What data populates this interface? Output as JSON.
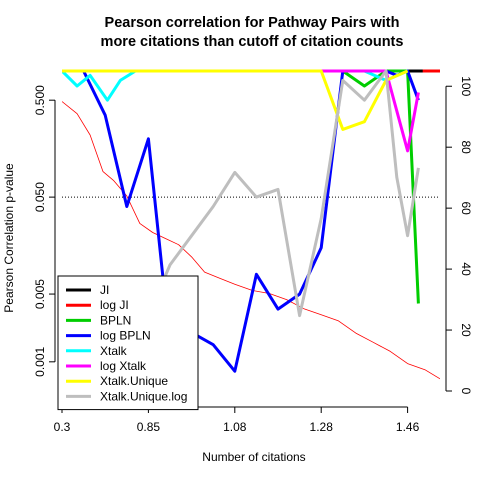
{
  "chart_data": {
    "type": "line",
    "title_lines": [
      "Pearson correlation for Pathway Pairs with",
      "more citations than cutoff of citation counts"
    ],
    "xlabel": "Number of citations",
    "ylabel": "Pearson Correlation p-value",
    "x_tick_labels": [
      "0.3",
      "0.85",
      "1.08",
      "1.28",
      "1.46"
    ],
    "x_tick_values": [
      1,
      5,
      9,
      13,
      17
    ],
    "xlim": [
      1,
      18.5
    ],
    "y_left": {
      "scale": "log10",
      "range": [
        0.0005,
        1.0
      ],
      "ticks": [
        0.001,
        0.005,
        0.05,
        0.5
      ],
      "tick_labels": [
        "0.001",
        "0.005",
        "0.050",
        "0.500"
      ]
    },
    "y_right": {
      "range": [
        0,
        105
      ],
      "ticks": [
        0,
        20,
        40,
        60,
        80,
        100
      ],
      "tick_labels": [
        "0",
        "20",
        "40",
        "60",
        "80",
        "100"
      ]
    },
    "reference_line": {
      "y": 0.05,
      "style": "dotted"
    },
    "series": [
      {
        "name": "JI",
        "color": "#000000",
        "axis": "left",
        "x": [
          1,
          18.5
        ],
        "y": [
          1.0,
          1.0
        ]
      },
      {
        "name": "log JI",
        "color": "#ff0000",
        "axis": "left",
        "x": [
          17.7,
          18.5
        ],
        "y": [
          1.0,
          1.0
        ]
      },
      {
        "name": "BPLN",
        "color": "#00cd00",
        "axis": "left",
        "x": [
          1,
          13,
          14,
          15,
          16,
          17,
          17.5
        ],
        "y": [
          1.0,
          1.0,
          1.0,
          0.7,
          1.0,
          1.0,
          0.004
        ]
      },
      {
        "name": "log BPLN",
        "color": "#0000ff",
        "axis": "left",
        "x": [
          1,
          2,
          3,
          4,
          5,
          6,
          7,
          8,
          9,
          10,
          11,
          12,
          13,
          14,
          15,
          16,
          16.5,
          17,
          17.5
        ],
        "y": [
          1.0,
          1.0,
          0.35,
          0.04,
          0.2,
          0.0015,
          0.002,
          0.0015,
          0.0008,
          0.008,
          0.0035,
          0.005,
          0.015,
          1.0,
          1.0,
          1.0,
          0.9,
          1.0,
          0.5
        ]
      },
      {
        "name": "Xtalk",
        "color": "#00ffff",
        "axis": "left",
        "x": [
          1,
          1.7,
          2.3,
          3.1,
          3.7,
          4.4,
          13,
          14,
          15,
          16,
          17
        ],
        "y": [
          1.0,
          0.7,
          0.9,
          0.5,
          0.8,
          1.0,
          1.0,
          1.0,
          1.0,
          0.8,
          1.0
        ]
      },
      {
        "name": "log Xtalk",
        "color": "#ff00ff",
        "axis": "left",
        "x": [
          1,
          13,
          14,
          15,
          16,
          17,
          17.5
        ],
        "y": [
          1.0,
          1.0,
          1.0,
          1.0,
          1.0,
          0.15,
          0.6
        ]
      },
      {
        "name": "Xtalk.Unique",
        "color": "#ffff00",
        "axis": "left",
        "x": [
          1,
          13,
          14,
          15,
          16,
          17
        ],
        "y": [
          1.0,
          1.0,
          0.25,
          0.3,
          0.8,
          1.0
        ]
      },
      {
        "name": "Xtalk.Unique.log",
        "color": "#bebebe",
        "axis": "left",
        "x": [
          1,
          2,
          3,
          4,
          5,
          6,
          7,
          8,
          9,
          10,
          11,
          12,
          13,
          14,
          15,
          16,
          16.5,
          17,
          17.5
        ],
        "y": [
          0.001,
          0.005,
          0.006,
          0.002,
          0.003,
          0.01,
          0.02,
          0.04,
          0.09,
          0.05,
          0.06,
          0.003,
          0.03,
          0.8,
          0.5,
          1.0,
          0.08,
          0.02,
          0.1
        ]
      },
      {
        "name": "cutoff counts",
        "color": "#ff0000",
        "axis": "right",
        "legend": false,
        "x": [
          1,
          1.7,
          2.3,
          2.9,
          3.4,
          4.0,
          4.6,
          5.2,
          5.8,
          6.4,
          7.0,
          7.6,
          8.3,
          9.0,
          9.8,
          10.6,
          11.4,
          12.2,
          13.0,
          13.8,
          14.6,
          15.4,
          16.2,
          17.0,
          17.8,
          18.5
        ],
        "y": [
          95,
          91,
          84,
          72,
          69,
          64,
          55,
          52,
          50,
          48,
          44,
          39,
          37,
          35,
          33,
          32,
          30,
          27,
          25,
          23,
          19,
          16,
          13,
          9,
          7,
          4
        ]
      }
    ],
    "legend": {
      "position": "bottom-left",
      "entries": [
        "JI",
        "log JI",
        "BPLN",
        "log BPLN",
        "Xtalk",
        "log Xtalk",
        "Xtalk.Unique",
        "Xtalk.Unique.log"
      ]
    }
  }
}
